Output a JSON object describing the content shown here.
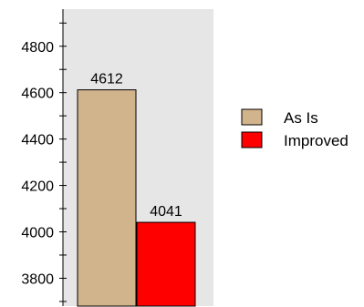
{
  "chart_data": {
    "type": "bar",
    "title": "",
    "xlabel": "",
    "ylabel": "",
    "ylim": [
      3680,
      4960
    ],
    "y_ticks": [
      3800,
      4000,
      4200,
      4400,
      4600,
      4800
    ],
    "y_minor_step": 100,
    "grid": false,
    "plot_background": "#e6e6e6",
    "legend_position": "right",
    "series": [
      {
        "name": "As Is",
        "value": 4612,
        "label": "4612",
        "color": "#d2b48c"
      },
      {
        "name": "Improved",
        "value": 4041,
        "label": "4041",
        "color": "#ff0000"
      }
    ]
  }
}
